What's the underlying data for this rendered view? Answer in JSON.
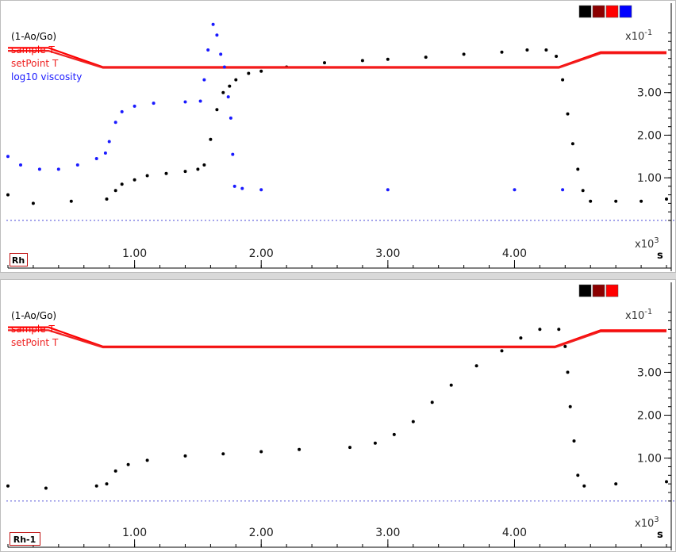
{
  "chart_data": [
    {
      "type": "line",
      "tag": "Rh",
      "xlim": [
        0,
        5200
      ],
      "ylim": [
        -0.3,
        4.8
      ],
      "x_ticks": [
        1000,
        2000,
        3000,
        4000
      ],
      "x_tick_labels": [
        "1.00",
        "2.00",
        "3.00",
        "4.00"
      ],
      "y_ticks": [
        1.0,
        2.0,
        3.0
      ],
      "y_tick_labels": [
        "1.00",
        "2.00",
        "3.00"
      ],
      "y_exponent_label": "x10",
      "y_exponent_power": "-1",
      "x_exponent_label": "x10",
      "x_exponent_power": "3",
      "x_unit": "s",
      "legend_swatches": [
        "#000000",
        "#8b0000",
        "#ff0000",
        "#0000ff"
      ],
      "series": [
        {
          "name": "(1-Ao/Go)",
          "color": "#000000",
          "style": "dots",
          "points": [
            [
              0,
              0.6
            ],
            [
              200,
              0.4
            ],
            [
              500,
              0.45
            ],
            [
              780,
              0.5
            ],
            [
              850,
              0.7
            ],
            [
              900,
              0.85
            ],
            [
              1000,
              0.95
            ],
            [
              1100,
              1.05
            ],
            [
              1250,
              1.1
            ],
            [
              1400,
              1.15
            ],
            [
              1500,
              1.2
            ],
            [
              1550,
              1.3
            ],
            [
              1600,
              1.9
            ],
            [
              1650,
              2.6
            ],
            [
              1700,
              3.0
            ],
            [
              1750,
              3.15
            ],
            [
              1800,
              3.3
            ],
            [
              1900,
              3.45
            ],
            [
              2000,
              3.5
            ],
            [
              2200,
              3.6
            ],
            [
              2500,
              3.7
            ],
            [
              2800,
              3.75
            ],
            [
              3000,
              3.78
            ],
            [
              3300,
              3.83
            ],
            [
              3600,
              3.9
            ],
            [
              3900,
              3.95
            ],
            [
              4100,
              4.0
            ],
            [
              4250,
              4.0
            ],
            [
              4330,
              3.85
            ],
            [
              4380,
              3.3
            ],
            [
              4420,
              2.5
            ],
            [
              4460,
              1.8
            ],
            [
              4500,
              1.2
            ],
            [
              4540,
              0.7
            ],
            [
              4600,
              0.45
            ],
            [
              4800,
              0.45
            ],
            [
              5000,
              0.45
            ],
            [
              5200,
              0.5
            ]
          ]
        },
        {
          "name": "sample T",
          "color": "#ff0000",
          "style": "line",
          "points": [
            [
              0,
              4.05
            ],
            [
              320,
              4.05
            ],
            [
              750,
              3.6
            ],
            [
              4350,
              3.6
            ],
            [
              4680,
              3.95
            ],
            [
              5200,
              3.95
            ]
          ]
        },
        {
          "name": "setPoint T",
          "color": "#ee2222",
          "style": "line",
          "points": [
            [
              0,
              3.98
            ],
            [
              320,
              3.98
            ],
            [
              750,
              3.58
            ],
            [
              4350,
              3.58
            ],
            [
              4680,
              3.92
            ],
            [
              5200,
              3.92
            ]
          ]
        },
        {
          "name": "log10 viscosity",
          "color": "#1a1aff",
          "style": "dots",
          "points": [
            [
              0,
              1.5
            ],
            [
              100,
              1.3
            ],
            [
              250,
              1.2
            ],
            [
              400,
              1.2
            ],
            [
              550,
              1.3
            ],
            [
              700,
              1.45
            ],
            [
              770,
              1.58
            ],
            [
              800,
              1.85
            ],
            [
              850,
              2.3
            ],
            [
              900,
              2.55
            ],
            [
              1000,
              2.68
            ],
            [
              1150,
              2.75
            ],
            [
              1400,
              2.78
            ],
            [
              1520,
              2.8
            ],
            [
              1550,
              3.3
            ],
            [
              1580,
              4.0
            ],
            [
              1620,
              4.6
            ],
            [
              1650,
              4.35
            ],
            [
              1680,
              3.9
            ],
            [
              1710,
              3.6
            ],
            [
              1740,
              2.9
            ],
            [
              1760,
              2.4
            ],
            [
              1775,
              1.55
            ],
            [
              1790,
              0.8
            ],
            [
              1850,
              0.75
            ],
            [
              2000,
              0.72
            ],
            [
              3000,
              0.72
            ],
            [
              4000,
              0.72
            ],
            [
              4380,
              0.72
            ]
          ]
        }
      ]
    },
    {
      "type": "line",
      "tag": "Rh-1",
      "xlim": [
        0,
        5200
      ],
      "ylim": [
        -0.3,
        4.8
      ],
      "x_ticks": [
        1000,
        2000,
        3000,
        4000
      ],
      "x_tick_labels": [
        "1.00",
        "2.00",
        "3.00",
        "4.00"
      ],
      "y_ticks": [
        1.0,
        2.0,
        3.0
      ],
      "y_tick_labels": [
        "1.00",
        "2.00",
        "3.00"
      ],
      "y_exponent_label": "x10",
      "y_exponent_power": "-1",
      "x_exponent_label": "x10",
      "x_exponent_power": "3",
      "x_unit": "s",
      "legend_swatches": [
        "#000000",
        "#8b0000",
        "#ff0000"
      ],
      "series": [
        {
          "name": "(1-Ao/Go)",
          "color": "#000000",
          "style": "dots",
          "points": [
            [
              0,
              0.35
            ],
            [
              300,
              0.3
            ],
            [
              700,
              0.35
            ],
            [
              780,
              0.4
            ],
            [
              850,
              0.7
            ],
            [
              950,
              0.85
            ],
            [
              1100,
              0.95
            ],
            [
              1400,
              1.05
            ],
            [
              1700,
              1.1
            ],
            [
              2000,
              1.15
            ],
            [
              2300,
              1.2
            ],
            [
              2700,
              1.25
            ],
            [
              2900,
              1.35
            ],
            [
              3050,
              1.55
            ],
            [
              3200,
              1.85
            ],
            [
              3350,
              2.3
            ],
            [
              3500,
              2.7
            ],
            [
              3700,
              3.15
            ],
            [
              3900,
              3.5
            ],
            [
              4050,
              3.8
            ],
            [
              4200,
              4.0
            ],
            [
              4350,
              4.0
            ],
            [
              4400,
              3.6
            ],
            [
              4420,
              3.0
            ],
            [
              4440,
              2.2
            ],
            [
              4470,
              1.4
            ],
            [
              4500,
              0.6
            ],
            [
              4550,
              0.35
            ],
            [
              4800,
              0.4
            ],
            [
              5200,
              0.45
            ]
          ]
        },
        {
          "name": "sample T",
          "color": "#ff0000",
          "style": "line",
          "points": [
            [
              0,
              4.05
            ],
            [
              320,
              4.05
            ],
            [
              750,
              3.6
            ],
            [
              4320,
              3.6
            ],
            [
              4680,
              3.98
            ],
            [
              5200,
              3.98
            ]
          ]
        },
        {
          "name": "setPoint T",
          "color": "#ee2222",
          "style": "line",
          "points": [
            [
              0,
              3.98
            ],
            [
              320,
              3.98
            ],
            [
              750,
              3.58
            ],
            [
              4320,
              3.58
            ],
            [
              4680,
              3.95
            ],
            [
              5200,
              3.95
            ]
          ]
        }
      ]
    }
  ]
}
